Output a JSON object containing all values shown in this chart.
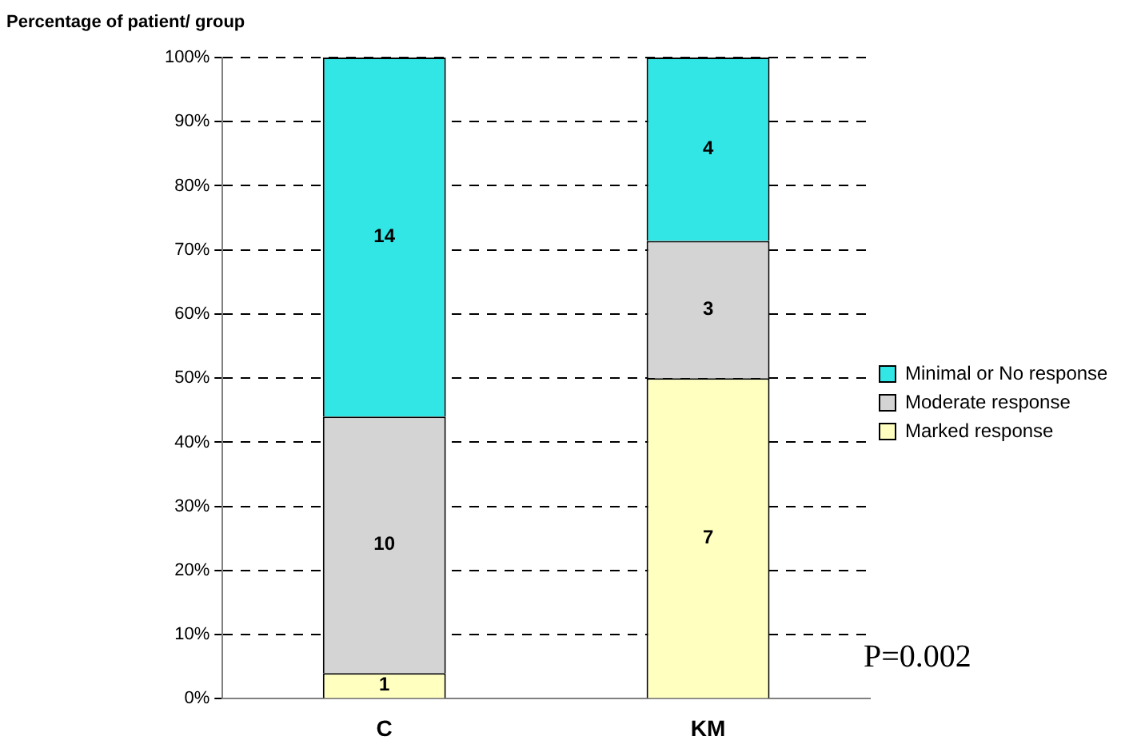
{
  "chart_data": {
    "type": "bar",
    "ylabel": "Percentage of patient/ group",
    "categories": [
      "C",
      "KM"
    ],
    "stacked": true,
    "series": [
      {
        "name": "Marked response",
        "color": "#ffffc0",
        "values": [
          4,
          50
        ]
      },
      {
        "name": "Moderate response",
        "color": "#d4d4d4",
        "values": [
          40,
          21.4
        ]
      },
      {
        "name": "Minimal or No response",
        "color": "#33e6e6",
        "values": [
          56,
          28.6
        ]
      }
    ],
    "ylim": [
      0,
      100
    ],
    "yticks": [
      {
        "value": 0,
        "label": "0%"
      },
      {
        "value": 10,
        "label": "10%"
      },
      {
        "value": 20,
        "label": "20%"
      },
      {
        "value": 30,
        "label": "30%"
      },
      {
        "value": 40,
        "label": "40%"
      },
      {
        "value": 50,
        "label": "50%"
      },
      {
        "value": 60,
        "label": "60%"
      },
      {
        "value": 70,
        "label": "70%"
      },
      {
        "value": 80,
        "label": "80%"
      },
      {
        "value": 90,
        "label": "90%"
      },
      {
        "value": 100,
        "label": "100%"
      }
    ],
    "grid": "y",
    "legend": "right",
    "annotations": [
      "1",
      "7",
      "10",
      "3",
      "14",
      "4",
      "P=0.002"
    ]
  }
}
